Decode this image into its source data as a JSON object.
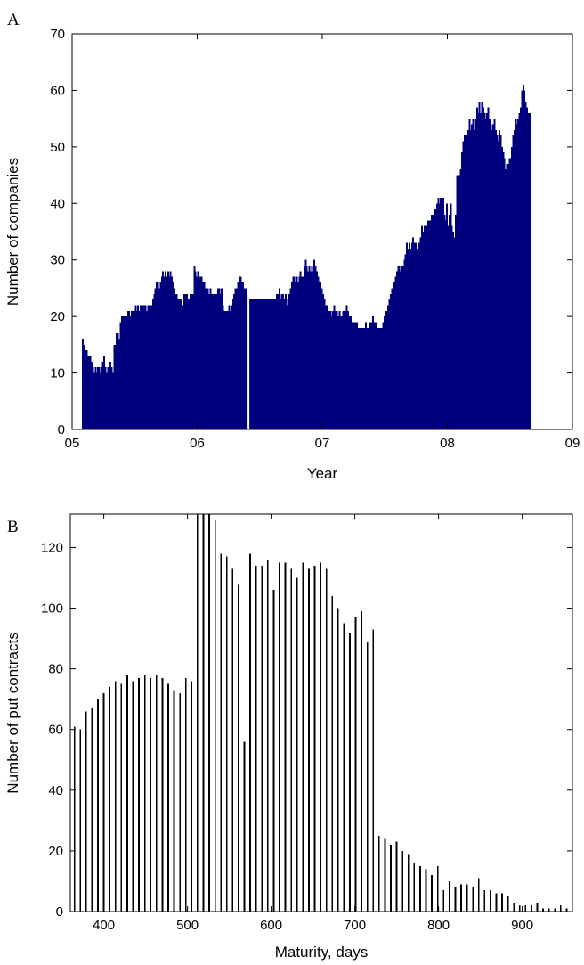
{
  "chart_data": [
    {
      "panel_label": "A",
      "type": "bar",
      "xlabel": "Year",
      "ylabel": "Number of companies",
      "xlim": [
        5,
        9
      ],
      "ylim": [
        0,
        70
      ],
      "xticks": [
        5,
        6,
        7,
        8,
        9
      ],
      "xtick_labels": [
        "05",
        "06",
        "07",
        "08",
        "09"
      ],
      "yticks": [
        0,
        10,
        20,
        30,
        40,
        50,
        60,
        70
      ],
      "ytick_labels": [
        "0",
        "10",
        "20",
        "30",
        "40",
        "50",
        "60",
        "70"
      ],
      "grid": false,
      "bar_color": "#00007f",
      "series": [
        {
          "x_start": 5.08,
          "x_end": 8.66,
          "gap_at": 6.41,
          "values": [
            16,
            15,
            14,
            14,
            13,
            13,
            13,
            12,
            11,
            10,
            11,
            10,
            11,
            11,
            10,
            11,
            12,
            13,
            11,
            10,
            11,
            10,
            12,
            11,
            10,
            15,
            15,
            17,
            17,
            16,
            19,
            20,
            20,
            20,
            20,
            20,
            21,
            21,
            20,
            21,
            21,
            21,
            22,
            21,
            22,
            21,
            22,
            21,
            22,
            22,
            22,
            21,
            22,
            22,
            22,
            22,
            23,
            24,
            25,
            26,
            26,
            25,
            26,
            27,
            28,
            27,
            28,
            27,
            28,
            27,
            28,
            27,
            26,
            25,
            24,
            24,
            23,
            23,
            23,
            22,
            22,
            24,
            24,
            24,
            23,
            23,
            24,
            24,
            24,
            29,
            28,
            27,
            28,
            27,
            27,
            27,
            26,
            26,
            25,
            25,
            25,
            24,
            25,
            24,
            24,
            24,
            24,
            24,
            25,
            25,
            24,
            25,
            22,
            21,
            21,
            21,
            21,
            22,
            21,
            22,
            23,
            24,
            25,
            25,
            26,
            27,
            27,
            26,
            26,
            25,
            25,
            24,
            24,
            23,
            23,
            23,
            23,
            23,
            23,
            23,
            23,
            23,
            23,
            23,
            23,
            23,
            23,
            23,
            23,
            23,
            23,
            23,
            23,
            23,
            23,
            24,
            24,
            25,
            23,
            24,
            24,
            23,
            24,
            22,
            23,
            24,
            25,
            26,
            27,
            27,
            26,
            27,
            26,
            27,
            28,
            27,
            27,
            29,
            30,
            29,
            28,
            29,
            28,
            29,
            28,
            30,
            29,
            28,
            27,
            26,
            26,
            25,
            24,
            23,
            22,
            22,
            21,
            21,
            21,
            20,
            21,
            22,
            21,
            21,
            20,
            21,
            20,
            20,
            21,
            21,
            21,
            22,
            21,
            20,
            20,
            19,
            19,
            19,
            19,
            19,
            18,
            18,
            18,
            18,
            18,
            18,
            19,
            18,
            18,
            19,
            19,
            19,
            20,
            19,
            19,
            18,
            18,
            18,
            18,
            18,
            19,
            20,
            21,
            21,
            22,
            23,
            24,
            25,
            25,
            26,
            27,
            28,
            29,
            29,
            28,
            29,
            29,
            30,
            31,
            33,
            32,
            33,
            32,
            33,
            34,
            33,
            33,
            32,
            33,
            33,
            34,
            36,
            35,
            36,
            35,
            36,
            37,
            37,
            37,
            38,
            38,
            39,
            39,
            40,
            41,
            40,
            41,
            40,
            41,
            38,
            37,
            40,
            36,
            38,
            40,
            36,
            35,
            34,
            38,
            45,
            42,
            45,
            46,
            49,
            51,
            52,
            50,
            52,
            53,
            55,
            53,
            54,
            55,
            53,
            55,
            57,
            56,
            58,
            56,
            58,
            57,
            56,
            55,
            56,
            57,
            55,
            54,
            53,
            54,
            55,
            53,
            52,
            51,
            53,
            52,
            50,
            49,
            48,
            46,
            47,
            47,
            48,
            48,
            50,
            52,
            53,
            55,
            54,
            55,
            56,
            57,
            60,
            61,
            60,
            58,
            57,
            56,
            56
          ]
        }
      ]
    },
    {
      "panel_label": "B",
      "type": "bar",
      "xlabel": "Maturity, days",
      "ylabel": "Number of put contracts",
      "xlim": [
        360,
        960
      ],
      "ylim": [
        0,
        131
      ],
      "xticks": [
        400,
        500,
        600,
        700,
        800,
        900
      ],
      "xtick_labels": [
        "400",
        "500",
        "600",
        "700",
        "800",
        "900"
      ],
      "yticks": [
        0,
        20,
        40,
        60,
        80,
        100,
        120
      ],
      "ytick_labels": [
        "0",
        "20",
        "40",
        "60",
        "80",
        "100",
        "120"
      ],
      "grid": false,
      "bar_color": "#000000",
      "x": [
        365,
        372,
        379,
        386,
        393,
        400,
        407,
        414,
        421,
        428,
        435,
        442,
        449,
        456,
        463,
        470,
        477,
        484,
        491,
        498,
        505,
        512,
        519,
        526,
        533,
        540,
        547,
        554,
        561,
        568,
        575,
        582,
        589,
        596,
        603,
        610,
        617,
        624,
        631,
        638,
        645,
        652,
        659,
        666,
        673,
        680,
        687,
        694,
        701,
        708,
        715,
        722,
        729,
        736,
        743,
        750,
        757,
        764,
        771,
        778,
        785,
        792,
        799,
        806,
        813,
        820,
        827,
        834,
        841,
        848,
        855,
        862,
        869,
        876,
        883,
        890,
        897,
        904,
        911,
        918,
        925,
        932,
        939,
        946,
        953
      ],
      "values": [
        61,
        60,
        66,
        67,
        70,
        72,
        74,
        76,
        75,
        78,
        76,
        77,
        78,
        77,
        78,
        77,
        75,
        73,
        72,
        77,
        76,
        131,
        131,
        131,
        129,
        118,
        117,
        113,
        108,
        56,
        118,
        114,
        114,
        116,
        106,
        115,
        115,
        113,
        110,
        115,
        113,
        114,
        115,
        113,
        104,
        100,
        95,
        92,
        97,
        99,
        89,
        93,
        25,
        24,
        22,
        23,
        20,
        19,
        16,
        15,
        14,
        12,
        15,
        7,
        10,
        8,
        9,
        9,
        8,
        11,
        7,
        7,
        6,
        6,
        5,
        3,
        2,
        2,
        2,
        3,
        1,
        1,
        1,
        2,
        1
      ]
    }
  ]
}
